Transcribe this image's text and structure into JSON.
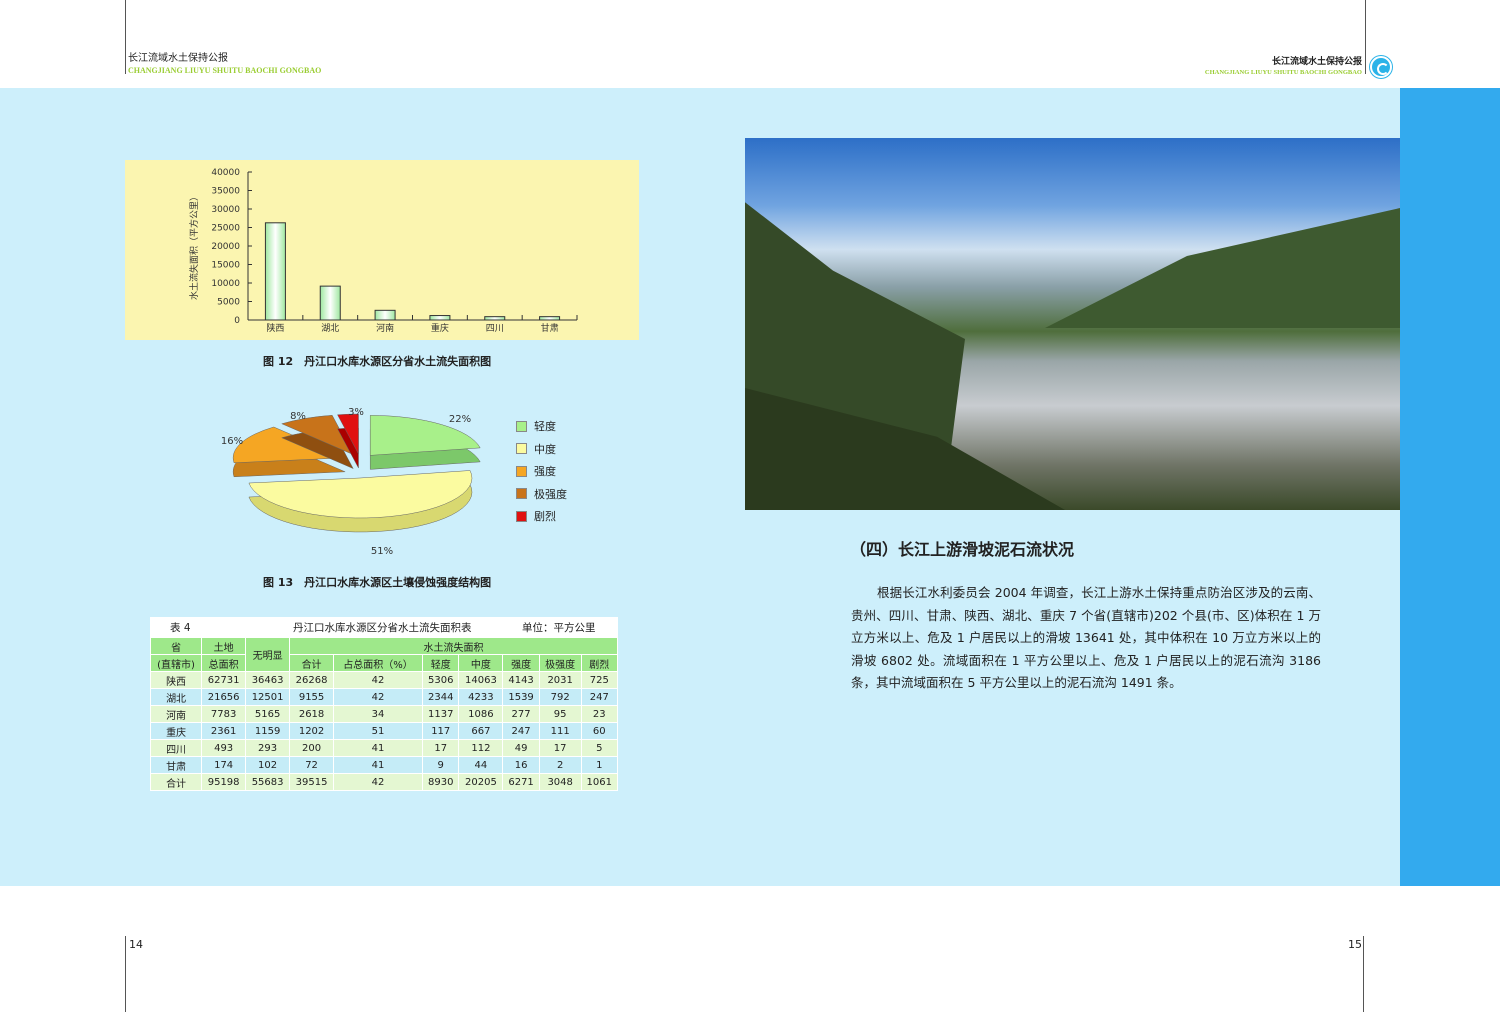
{
  "header": {
    "left_cn": "长江流域水土保持公报",
    "left_en": "CHANGJIANG LIUYU SHUITU BAOCHI GONGBAO",
    "right_cn": "长江流域水土保持公报",
    "right_en": "CHANGJIANG LIUYU SHUITU BAOCHI GONGBAO"
  },
  "colors": {
    "band": "#cdeffb",
    "strip": "#33aaee",
    "chart_bg": "#fbf5b0",
    "bar": "#c8f5c8"
  },
  "chart_data": [
    {
      "type": "bar",
      "title": "图 12　丹江口水库水源区分省水土流失面积图",
      "ylabel": "水土流失面积（平方公里）",
      "xlabel": "",
      "categories": [
        "陕西",
        "湖北",
        "河南",
        "重庆",
        "四川",
        "甘肃"
      ],
      "values": [
        26268,
        9155,
        2618,
        1202,
        200,
        72
      ],
      "ylim": [
        0,
        40000
      ],
      "yticks": [
        "0",
        "5000",
        "10000",
        "15000",
        "20000",
        "25000",
        "30000",
        "35000",
        "40000"
      ],
      "grid": false
    },
    {
      "type": "pie",
      "title": "图 13　丹江口水库水源区土壤侵蚀强度结构图",
      "categories": [
        "轻度",
        "中度",
        "强度",
        "极强度",
        "剧烈"
      ],
      "values": [
        22,
        51,
        16,
        8,
        3
      ],
      "labels": [
        "22%",
        "51%",
        "16%",
        "8%",
        "3%"
      ],
      "colors": [
        "#a8f08a",
        "#fbfba0",
        "#f5a623",
        "#c8731a",
        "#e01010"
      ],
      "legend": "right"
    }
  ],
  "table": {
    "title": "表 4",
    "caption": "丹江口水库水源区分省水土流失面积表",
    "unit": "单位：平方公里",
    "head1": [
      "省",
      "土地",
      "无明显",
      "水土流失面积"
    ],
    "head2": [
      "(直辖市)",
      "总面积",
      "合计",
      "占总面积（%）",
      "轻度",
      "中度",
      "强度",
      "极强度",
      "剧烈"
    ],
    "rows": [
      [
        "陕西",
        "62731",
        "36463",
        "26268",
        "42",
        "5306",
        "14063",
        "4143",
        "2031",
        "725"
      ],
      [
        "湖北",
        "21656",
        "12501",
        "9155",
        "42",
        "2344",
        "4233",
        "1539",
        "792",
        "247"
      ],
      [
        "河南",
        "7783",
        "5165",
        "2618",
        "34",
        "1137",
        "1086",
        "277",
        "95",
        "23"
      ],
      [
        "重庆",
        "2361",
        "1159",
        "1202",
        "51",
        "117",
        "667",
        "247",
        "111",
        "60"
      ],
      [
        "四川",
        "493",
        "293",
        "200",
        "41",
        "17",
        "112",
        "49",
        "17",
        "5"
      ],
      [
        "甘肃",
        "174",
        "102",
        "72",
        "41",
        "9",
        "44",
        "16",
        "2",
        "1"
      ],
      [
        "合计",
        "95198",
        "55683",
        "39515",
        "42",
        "8930",
        "20205",
        "6271",
        "3048",
        "1061"
      ]
    ]
  },
  "section": {
    "heading": "（四）长江上游滑坡泥石流状况",
    "paragraph": "根据长江水利委员会 2004 年调查，长江上游水土保持重点防治区涉及的云南、贵州、四川、甘肃、陕西、湖北、重庆 7 个省(直辖市)202 个县(市、区)体积在 1 万立方米以上、危及 1 户居民以上的滑坡 13641 处，其中体积在 10 万立方米以上的滑坡 6802 处。流域面积在 1 平方公里以上、危及 1 户居民以上的泥石流沟 3186 条，其中流域面积在 5 平方公里以上的泥石流沟 1491 条。"
  },
  "pages": {
    "left": "14",
    "right": "15"
  }
}
